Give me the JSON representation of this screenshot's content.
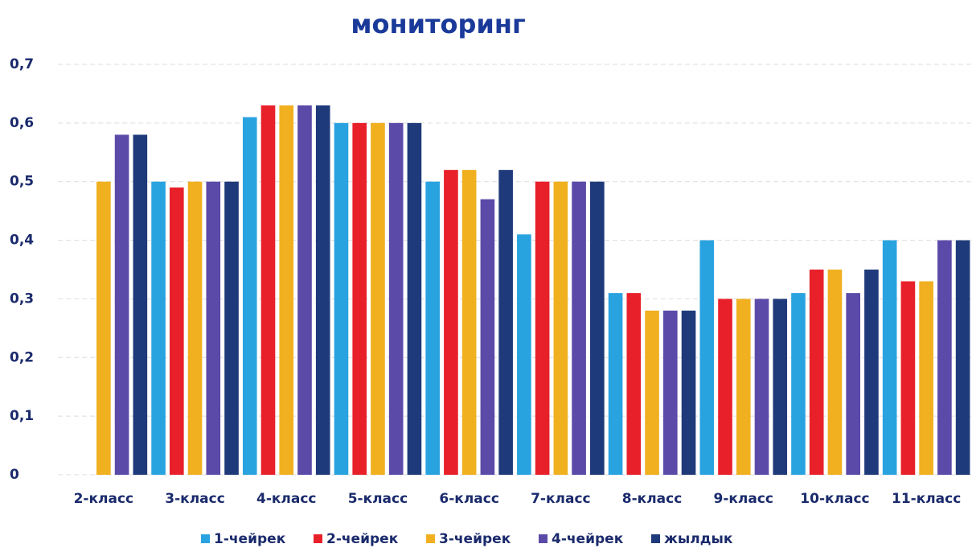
{
  "chart_data": {
    "type": "bar",
    "title": "мониторинг",
    "categories": [
      "2-класс",
      "3-класс",
      "4-класс",
      "5-класс",
      "6-класс",
      "7-класс",
      "8-класс",
      "9-класс",
      "10-класс",
      "11-класс"
    ],
    "series": [
      {
        "name": "1-чейрек",
        "color": "#29a3e0",
        "values": [
          null,
          0.5,
          0.61,
          0.6,
          0.5,
          0.41,
          0.31,
          0.4,
          0.31,
          0.4
        ]
      },
      {
        "name": "2-чейрек",
        "color": "#e8202a",
        "values": [
          null,
          0.49,
          0.63,
          0.6,
          0.52,
          0.5,
          0.31,
          0.3,
          0.35,
          0.33
        ]
      },
      {
        "name": "3-чейрек",
        "color": "#f0b020",
        "values": [
          0.5,
          0.5,
          0.63,
          0.6,
          0.52,
          0.5,
          0.28,
          0.3,
          0.35,
          0.33
        ]
      },
      {
        "name": "4-чейрек",
        "color": "#5b4aa8",
        "values": [
          0.58,
          0.5,
          0.63,
          0.6,
          0.47,
          0.5,
          0.28,
          0.3,
          0.31,
          0.4
        ]
      },
      {
        "name": "жылдык",
        "color": "#1f3a7a",
        "values": [
          0.58,
          0.5,
          0.63,
          0.6,
          0.52,
          0.5,
          0.28,
          0.3,
          0.35,
          0.4
        ]
      }
    ],
    "ylim": [
      0,
      0.7
    ],
    "yticks": [
      0,
      {
        "value": 0.1,
        "label": "0,1"
      },
      {
        "value": 0.2,
        "label": "0,2"
      },
      {
        "value": 0.3,
        "label": "0,3"
      },
      {
        "value": 0.4,
        "label": "0,4"
      },
      {
        "value": 0.5,
        "label": "0,5"
      },
      {
        "value": 0.6,
        "label": "0,6"
      },
      {
        "value": 0.7,
        "label": "0,7"
      }
    ],
    "grid": true,
    "legend": "bottom"
  }
}
